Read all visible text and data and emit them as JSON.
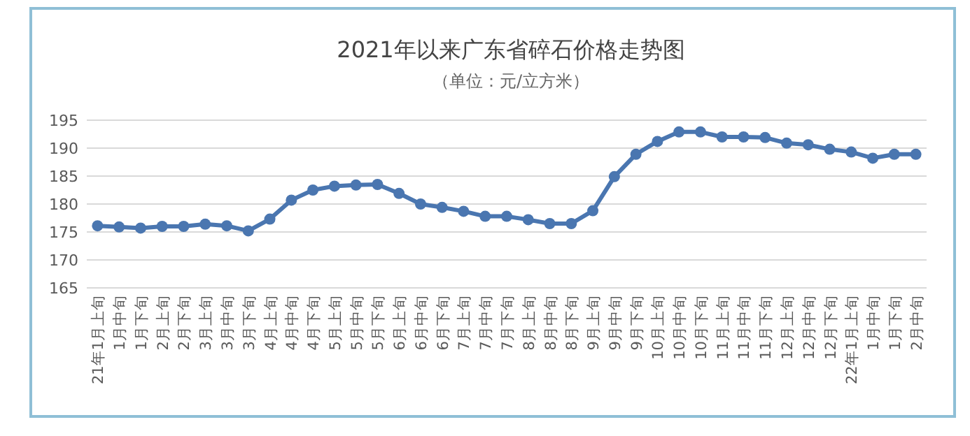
{
  "chart_data": {
    "type": "line",
    "title": "2021年以来广东省碎石价格走势图",
    "subtitle": "（单位：元/立方米）",
    "categories": [
      "21年1月上旬",
      "1月中旬",
      "1月下旬",
      "2月上旬",
      "2月下旬",
      "3月上旬",
      "3月中旬",
      "3月下旬",
      "4月上旬",
      "4月中旬",
      "4月下旬",
      "5月上旬",
      "5月中旬",
      "5月下旬",
      "6月上旬",
      "6月中旬",
      "6月下旬",
      "7月上旬",
      "7月中旬",
      "7月下旬",
      "8月上旬",
      "8月中旬",
      "8月下旬",
      "9月上旬",
      "9月中旬",
      "9月下旬",
      "10月上旬",
      "10月中旬",
      "10月下旬",
      "11月上旬",
      "11月中旬",
      "11月下旬",
      "12月上旬",
      "12月中旬",
      "12月下旬",
      "22年1月上旬",
      "1月中旬",
      "1月下旬",
      "2月中旬"
    ],
    "series": [
      {
        "color": "#4a76b0",
        "values": [
          176.1,
          175.9,
          175.7,
          176.0,
          176.0,
          176.4,
          176.1,
          175.2,
          177.3,
          180.7,
          182.5,
          183.2,
          183.4,
          183.5,
          181.9,
          180.0,
          179.4,
          178.7,
          177.8,
          177.8,
          177.2,
          176.5,
          176.5,
          178.8,
          184.9,
          188.9,
          191.2,
          192.9,
          192.9,
          192.0,
          192.0,
          191.9,
          190.9,
          190.6,
          189.8,
          189.3,
          188.2,
          188.9,
          188.9
        ]
      }
    ],
    "ylim": [
      165,
      195
    ],
    "yticks": [
      165,
      170,
      175,
      180,
      185,
      190,
      195
    ],
    "grid": "y",
    "marker": "circle",
    "line_style": "solid"
  }
}
